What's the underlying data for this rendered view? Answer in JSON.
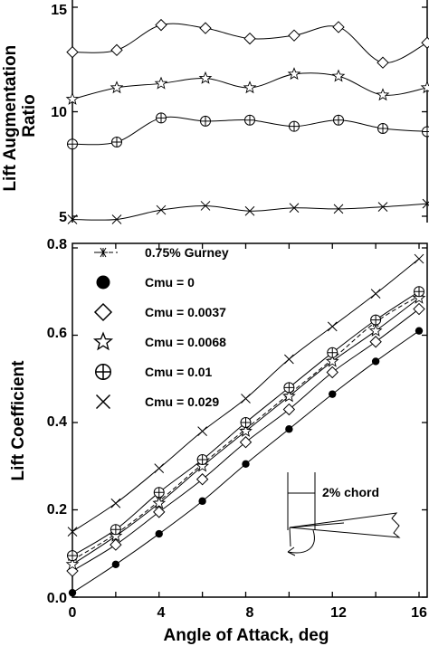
{
  "chart_data": [
    {
      "type": "line",
      "ylabel": "Lift Augmentation Ratio",
      "xlim": [
        0,
        16
      ],
      "ylim": [
        4.6,
        15
      ],
      "yticks": [
        5,
        10,
        15
      ],
      "x": [
        0,
        2,
        4,
        6,
        8,
        10,
        12,
        14,
        16
      ],
      "grid": false,
      "series": [
        {
          "marker": "diamond",
          "values": [
            12.85,
            12.95,
            14.15,
            14.0,
            13.5,
            13.65,
            14.05,
            12.35,
            13.3
          ]
        },
        {
          "marker": "star",
          "values": [
            10.6,
            11.15,
            11.35,
            11.6,
            11.15,
            11.8,
            11.7,
            10.8,
            11.15
          ]
        },
        {
          "marker": "circle-plus",
          "values": [
            8.45,
            8.55,
            9.7,
            9.55,
            9.6,
            9.3,
            9.6,
            9.2,
            9.05
          ]
        },
        {
          "marker": "x",
          "values": [
            4.85,
            4.85,
            5.3,
            5.5,
            5.25,
            5.4,
            5.35,
            5.45,
            5.6
          ]
        }
      ]
    },
    {
      "type": "line",
      "xlabel": "Angle of Attack, deg",
      "ylabel": "Lift Coefficient",
      "xlim": [
        0,
        16
      ],
      "ylim": [
        0,
        0.8
      ],
      "xticks": [
        0,
        4,
        8,
        12,
        16
      ],
      "yticks": [
        0.0,
        0.2,
        0.4,
        0.6,
        0.8
      ],
      "ytick_labels": [
        "0.0",
        "0.2",
        "0.4",
        "0.6",
        "0.8"
      ],
      "x": [
        0,
        2,
        4,
        6,
        8,
        10,
        12,
        14,
        16
      ],
      "grid": false,
      "legend_position": "top-left",
      "series": [
        {
          "name": "0.75% Gurney",
          "marker": "asterisk",
          "line": "dashed",
          "values": [
            0.085,
            0.145,
            0.22,
            0.305,
            0.385,
            0.465,
            0.545,
            0.63,
            0.69
          ]
        },
        {
          "name": "Cmu = 0",
          "marker": "filled-circle",
          "line": "solid",
          "values": [
            0.01,
            0.075,
            0.145,
            0.22,
            0.305,
            0.385,
            0.465,
            0.54,
            0.61
          ]
        },
        {
          "name": "Cmu = 0.0037",
          "marker": "diamond",
          "line": "solid",
          "values": [
            0.06,
            0.12,
            0.195,
            0.27,
            0.355,
            0.43,
            0.515,
            0.585,
            0.66
          ]
        },
        {
          "name": "Cmu = 0.0068",
          "marker": "star",
          "line": "solid",
          "values": [
            0.075,
            0.14,
            0.215,
            0.3,
            0.38,
            0.46,
            0.54,
            0.61,
            0.685
          ]
        },
        {
          "name": "Cmu = 0.01",
          "marker": "circle-plus",
          "line": "solid",
          "values": [
            0.095,
            0.155,
            0.24,
            0.315,
            0.4,
            0.48,
            0.56,
            0.635,
            0.7
          ]
        },
        {
          "name": "Cmu = 0.029",
          "marker": "x",
          "line": "solid",
          "values": [
            0.15,
            0.215,
            0.295,
            0.38,
            0.455,
            0.545,
            0.62,
            0.695,
            0.775
          ]
        }
      ],
      "annotations": [
        {
          "text": "2% chord"
        }
      ]
    }
  ],
  "colors": {
    "ink": "#000000",
    "background": "#ffffff"
  }
}
